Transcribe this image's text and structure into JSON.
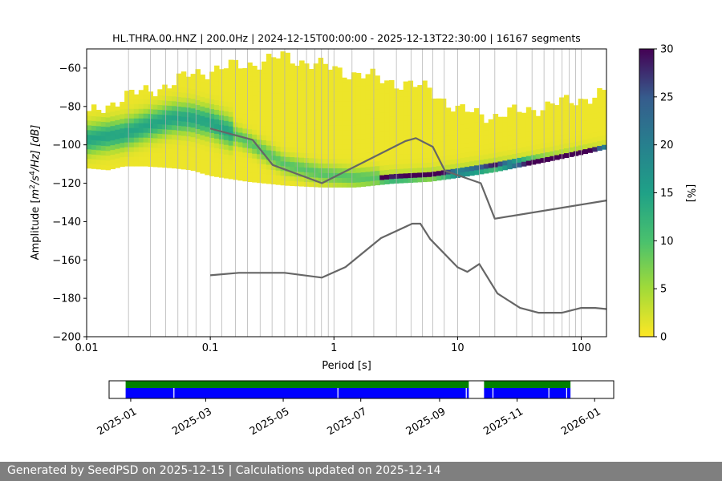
{
  "footer": {
    "text": "Generated by SeedPSD on 2025-12-15 | Calculations updated on 2025-12-14"
  },
  "chart_data": [
    {
      "type": "heatmap",
      "title": "HL.THRA.00.HNZ | 200.0Hz | 2024-12-15T00:00:00 - 2025-12-13T22:30:00 | 16167 segments",
      "xlabel": "Period [s]",
      "ylabel": "Amplitude [m²/s⁴/Hz] [dB]",
      "ylabel_parts": {
        "main": "Amplitude [",
        "m": "m",
        "exp2": "2",
        "s": "/s",
        "exp4": "4",
        "rest": "/Hz] [dB]"
      },
      "xscale": "log",
      "xlim": [
        0.01,
        160
      ],
      "ylim": [
        -200,
        -50
      ],
      "xticks": [
        0.01,
        0.1,
        1,
        10,
        100
      ],
      "xtick_labels": [
        "0.01",
        "0.1",
        "1",
        "10",
        "100"
      ],
      "yticks": [
        -200,
        -180,
        -160,
        -140,
        -120,
        -100,
        -80,
        -60
      ],
      "ytick_labels": [
        "−200",
        "−180",
        "−160",
        "−140",
        "−120",
        "−100",
        "−80",
        "−60"
      ],
      "colorbar": {
        "label": "[%]",
        "range": [
          0,
          30
        ],
        "ticks": [
          0,
          5,
          10,
          15,
          20,
          25,
          30
        ],
        "tick_labels": [
          "0",
          "5",
          "10",
          "15",
          "20",
          "25",
          "30"
        ],
        "colormap": "viridis_r"
      },
      "grid_periods": [
        0.0218,
        0.0328,
        0.0436,
        0.0547,
        0.0656,
        0.0766,
        0.1,
        0.124,
        0.16,
        0.2,
        0.253,
        0.316,
        0.4,
        0.504,
        0.6,
        0.7,
        0.793,
        0.9,
        1.0,
        1.4,
        2.1,
        3.2,
        4.2,
        5.2,
        6.3,
        7.8,
        10,
        15,
        20,
        30,
        40,
        50,
        60,
        70,
        80,
        90,
        100
      ],
      "nlnm": {
        "name": "NLNM",
        "x": [
          0.1,
          0.17,
          0.4,
          0.8,
          1.24,
          2.4,
          4.3,
          5.0,
          6.0,
          10,
          12,
          15,
          21,
          32,
          45,
          70,
          100,
          130,
          160
        ],
        "y": [
          -168,
          -166.7,
          -166.7,
          -169.2,
          -163.7,
          -148.6,
          -141.1,
          -141.1,
          -149.1,
          -163.8,
          -166.2,
          -162.1,
          -177.5,
          -185.0,
          -187.5,
          -187.5,
          -185.0,
          -185.0,
          -185.6
        ]
      },
      "nhnm": {
        "name": "NHNM",
        "x": [
          0.1,
          0.22,
          0.32,
          0.8,
          3.8,
          4.6,
          6.3,
          7.9,
          15.4,
          20,
          160
        ],
        "y": [
          -91.5,
          -97.4,
          -110.5,
          -120.0,
          -98.0,
          -96.5,
          -101.0,
          -113.5,
          -120.0,
          -138.5,
          -129.0
        ]
      },
      "series": [
        {
          "name": "median_band_center",
          "x": [
            0.01,
            0.02,
            0.03,
            0.05,
            0.07,
            0.1,
            0.2,
            0.4,
            0.8,
            1.5,
            3,
            6,
            10,
            20,
            50,
            100,
            160
          ],
          "y": [
            -97,
            -94,
            -90,
            -86,
            -86,
            -88,
            -98,
            -110,
            -115,
            -117,
            -117,
            -116,
            -114,
            -111,
            -108,
            -105,
            -103
          ]
        }
      ],
      "band_upper": {
        "x": [
          0.01,
          0.015,
          0.02,
          0.03,
          0.05,
          0.07,
          0.1,
          0.2,
          0.4,
          0.8,
          1.5,
          3,
          6,
          10,
          20,
          50,
          100,
          160
        ],
        "y": [
          -85,
          -79,
          -75,
          -72,
          -68,
          -63,
          -61,
          -58,
          -54,
          -59,
          -63,
          -67,
          -71,
          -82,
          -85,
          -80,
          -76,
          -73
        ]
      },
      "band_lower": {
        "x": [
          0.01,
          0.015,
          0.02,
          0.03,
          0.05,
          0.07,
          0.1,
          0.2,
          0.4,
          0.8,
          1.5,
          3,
          6,
          10,
          20,
          50,
          100,
          160
        ],
        "y": [
          -112,
          -113,
          -111,
          -111,
          -112,
          -113,
          -116,
          -119,
          -121,
          -122,
          -122,
          -120,
          -119,
          -117,
          -114,
          -109,
          -105,
          -102
        ]
      },
      "sharp_line": {
        "name": "instrument_noise_line",
        "x": [
          2.4,
          4,
          6,
          10,
          15,
          20,
          30,
          50,
          70,
          100,
          160
        ],
        "y": [
          -117.5,
          -116.5,
          -115.5,
          -114.5,
          -112.5,
          -111,
          -109.5,
          -107.5,
          -106,
          -104,
          -102
        ]
      }
    },
    {
      "type": "timeline",
      "xlim": [
        "2024-12-15",
        "2026-01-16"
      ],
      "xticks": [
        "2025-01",
        "2025-03",
        "2025-05",
        "2025-07",
        "2025-09",
        "2025-11",
        "2026-01"
      ],
      "tick_dates": [
        "2025-01-01",
        "2025-03-01",
        "2025-05-01",
        "2025-07-01",
        "2025-09-01",
        "2025-11-01",
        "2026-01-01"
      ],
      "green_segments": [
        [
          "2024-12-28",
          "2025-09-24"
        ],
        [
          "2025-10-06",
          "2025-12-13"
        ]
      ],
      "blue_segments": [
        [
          "2024-12-28",
          "2025-09-24"
        ],
        [
          "2025-10-06",
          "2025-12-13"
        ]
      ],
      "gaps": [
        "2025-02-04",
        "2025-06-13",
        "2025-09-22",
        "2025-10-13",
        "2025-11-26",
        "2025-12-10"
      ],
      "colors": {
        "green": "#008000",
        "blue": "#0000ff",
        "gap": "#ffffff"
      }
    }
  ]
}
